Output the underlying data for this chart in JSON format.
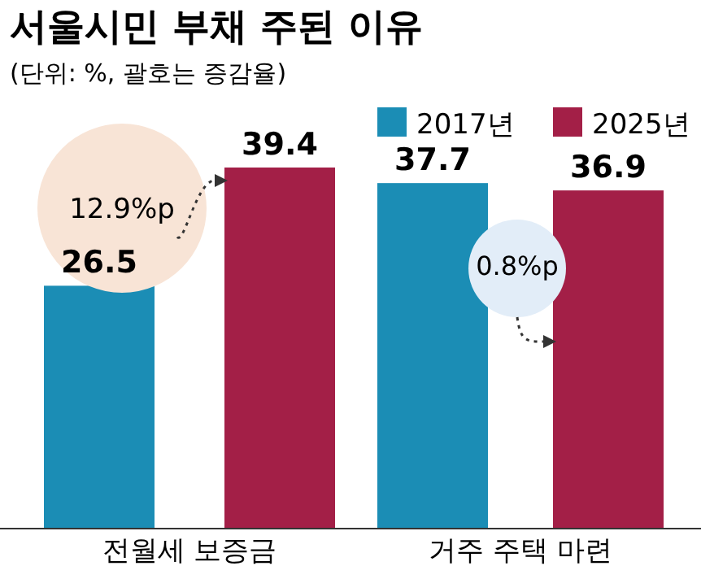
{
  "chart_data": {
    "type": "bar",
    "title": "서울시민 부채 주된 이유",
    "subtitle": "(단위: %, 괄호는 증감율)",
    "categories": [
      "전월세 보증금",
      "거주 주택 마련"
    ],
    "series": [
      {
        "name": "2017년",
        "color": "#1b8db5",
        "values": [
          26.5,
          37.7
        ]
      },
      {
        "name": "2025년",
        "color": "#a31f47",
        "values": [
          39.4,
          36.9
        ]
      }
    ],
    "data_labels": true,
    "legend": "top right",
    "annotations": [
      "12.9%p",
      "0.8%p"
    ]
  }
}
